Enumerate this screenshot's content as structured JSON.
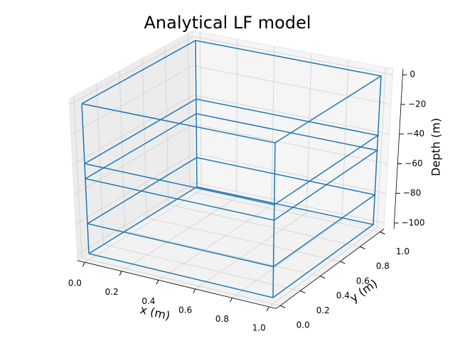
{
  "chart_data": {
    "type": "line3d",
    "title": "Analytical LF model",
    "xlabel": "x (m)",
    "ylabel": "y (m)",
    "zlabel": "Depth (m)",
    "color": "#1f77b4",
    "grid": true,
    "xlim": [
      0,
      1
    ],
    "ylim": [
      0,
      1
    ],
    "zlim": [
      -100,
      0
    ],
    "xticks": [
      {
        "value": 0,
        "label": "0.0"
      },
      {
        "value": 0.2,
        "label": "0.2"
      },
      {
        "value": 0.4,
        "label": "0.4"
      },
      {
        "value": 0.6,
        "label": "0.6"
      },
      {
        "value": 0.8,
        "label": "0.8"
      },
      {
        "value": 1,
        "label": "1.0"
      }
    ],
    "yticks": [
      {
        "value": 0,
        "label": "0.0"
      },
      {
        "value": 0.2,
        "label": "0.2"
      },
      {
        "value": 0.4,
        "label": "0.4"
      },
      {
        "value": 0.6,
        "label": "0.6"
      },
      {
        "value": 0.8,
        "label": "0.8"
      },
      {
        "value": 1,
        "label": "1.0"
      }
    ],
    "zticks": [
      0,
      {
        "value": -20,
        "label": "−20"
      },
      {
        "value": -40,
        "label": "−40"
      },
      {
        "value": -60,
        "label": "−60"
      },
      {
        "value": -80,
        "label": "−80"
      },
      {
        "value": -100,
        "label": "−100"
      }
    ],
    "lines": [
      {
        "x": [
          0,
          1,
          1,
          0,
          0
        ],
        "y": [
          0,
          0,
          1,
          1,
          0
        ],
        "z": [
          0,
          0,
          0,
          0,
          0
        ]
      },
      {
        "x": [
          0,
          1,
          1,
          0,
          0
        ],
        "y": [
          0,
          0,
          1,
          1,
          0
        ],
        "z": [
          -40,
          -40,
          -40,
          -40,
          -40
        ]
      },
      {
        "x": [
          0,
          1,
          1,
          0,
          0
        ],
        "y": [
          0,
          0,
          1,
          1,
          0
        ],
        "z": [
          -50,
          -50,
          -50,
          -50,
          -50
        ]
      },
      {
        "x": [
          0,
          1,
          1,
          0,
          0
        ],
        "y": [
          0,
          0,
          1,
          1,
          0
        ],
        "z": [
          -80,
          -80,
          -80,
          -80,
          -80
        ]
      },
      {
        "x": [
          0,
          1,
          1,
          0,
          0
        ],
        "y": [
          0,
          0,
          1,
          1,
          0
        ],
        "z": [
          -100,
          -100,
          -100,
          -100,
          -100
        ]
      },
      {
        "x": [
          0,
          0
        ],
        "y": [
          0,
          0
        ],
        "z": [
          0,
          -100
        ]
      },
      {
        "x": [
          1,
          1
        ],
        "y": [
          0,
          0
        ],
        "z": [
          0,
          -100
        ]
      },
      {
        "x": [
          1,
          1
        ],
        "y": [
          1,
          1
        ],
        "z": [
          0,
          -100
        ]
      },
      {
        "x": [
          0,
          0
        ],
        "y": [
          1,
          1
        ],
        "z": [
          0,
          -100
        ]
      }
    ]
  }
}
